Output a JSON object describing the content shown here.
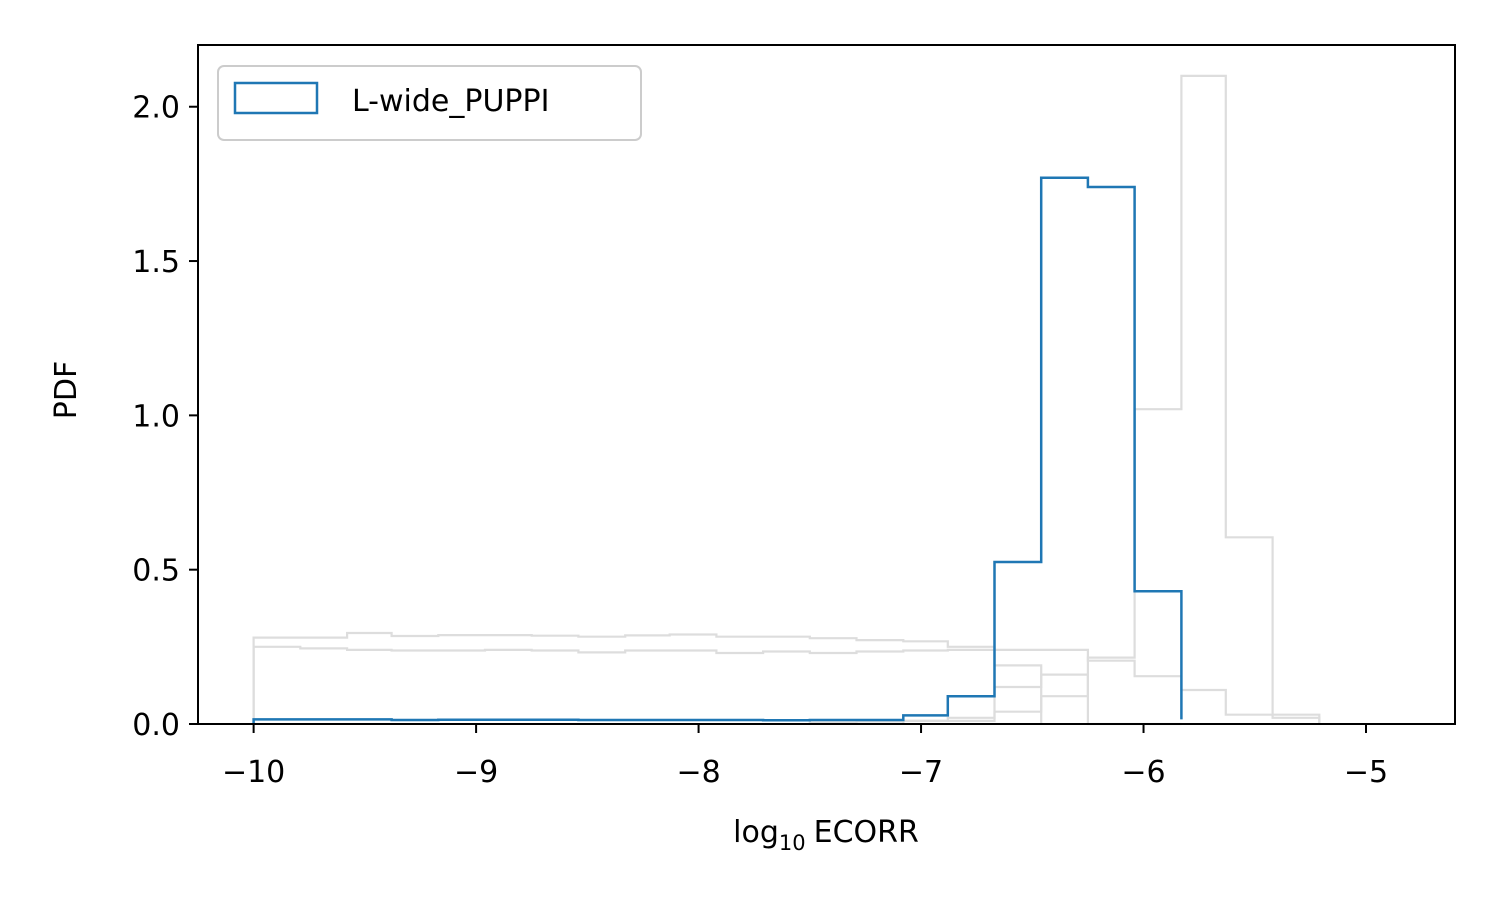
{
  "chart_data": {
    "type": "step-histogram",
    "xlabel_base": "log",
    "xlabel_sub": "10",
    "xlabel_rest": "ECORR",
    "ylabel": "PDF",
    "xlim": [
      -10.25,
      -4.6
    ],
    "ylim": [
      0,
      2.2
    ],
    "x_ticks": [
      -10,
      -9,
      -8,
      -7,
      -6,
      -5
    ],
    "x_tick_labels": [
      "−10",
      "−9",
      "−8",
      "−7",
      "−6",
      "−5"
    ],
    "y_ticks": [
      0.0,
      0.5,
      1.0,
      1.5,
      2.0
    ],
    "y_tick_labels": [
      "0.0",
      "0.5",
      "1.0",
      "1.5",
      "2.0"
    ],
    "legend_position": "upper-left",
    "highlight_color": "#1f77b4",
    "background_color": "#dddddd",
    "series": [
      {
        "name": "L-wide_PUPPI",
        "highlighted": true,
        "edges": [
          -10.0,
          -9.79,
          -9.58,
          -9.38,
          -9.17,
          -8.96,
          -8.75,
          -8.54,
          -8.33,
          -8.13,
          -7.92,
          -7.71,
          -7.5,
          -7.29,
          -7.08,
          -6.88,
          -6.67,
          -6.46,
          -6.25,
          -6.04,
          -5.83
        ],
        "values": [
          0.015,
          0.015,
          0.015,
          0.013,
          0.014,
          0.014,
          0.014,
          0.013,
          0.013,
          0.013,
          0.013,
          0.012,
          0.013,
          0.013,
          0.028,
          0.09,
          0.525,
          1.77,
          1.74,
          0.43,
          0.015
        ]
      },
      {
        "highlighted": false,
        "edges": [
          -10.0,
          -9.79,
          -9.58,
          -9.38,
          -9.17,
          -8.96,
          -8.75,
          -8.54,
          -8.33,
          -8.13,
          -7.92,
          -7.71,
          -7.5,
          -7.29,
          -7.08,
          -6.88,
          -6.67,
          -6.46
        ],
        "values": [
          0.28,
          0.28,
          0.295,
          0.285,
          0.288,
          0.288,
          0.286,
          0.283,
          0.287,
          0.29,
          0.283,
          0.283,
          0.278,
          0.272,
          0.268,
          0.25,
          0.19,
          0.0
        ]
      },
      {
        "highlighted": false,
        "edges": [
          -10.0,
          -9.79,
          -9.58,
          -9.38,
          -9.17,
          -8.96,
          -8.75,
          -8.54,
          -8.33,
          -8.13,
          -7.92,
          -7.71,
          -7.5,
          -7.29,
          -7.08,
          -6.88,
          -6.67,
          -6.46,
          -6.25,
          -6.04,
          -5.83,
          -5.63,
          -5.42,
          -5.21
        ],
        "values": [
          0.25,
          0.245,
          0.24,
          0.238,
          0.238,
          0.24,
          0.238,
          0.232,
          0.238,
          0.238,
          0.23,
          0.235,
          0.23,
          0.235,
          0.238,
          0.24,
          0.24,
          0.24,
          0.205,
          0.155,
          0.11,
          0.03,
          0.02,
          0.0
        ]
      },
      {
        "highlighted": false,
        "edges": [
          -7.08,
          -6.88,
          -6.67,
          -6.46,
          -6.25,
          -6.04,
          -5.83,
          -5.63,
          -5.42,
          -5.21
        ],
        "values": [
          0.01,
          0.01,
          0.04,
          0.09,
          0.215,
          1.02,
          2.1,
          0.605,
          0.03,
          0.0
        ]
      },
      {
        "highlighted": false,
        "edges": [
          -7.5,
          -7.29,
          -7.08,
          -6.88,
          -6.67,
          -6.46,
          -6.25,
          -6.04,
          -5.83
        ],
        "values": [
          0.005,
          0.008,
          0.01,
          0.02,
          0.12,
          0.16,
          0.0,
          0.0,
          0.0
        ]
      }
    ]
  }
}
